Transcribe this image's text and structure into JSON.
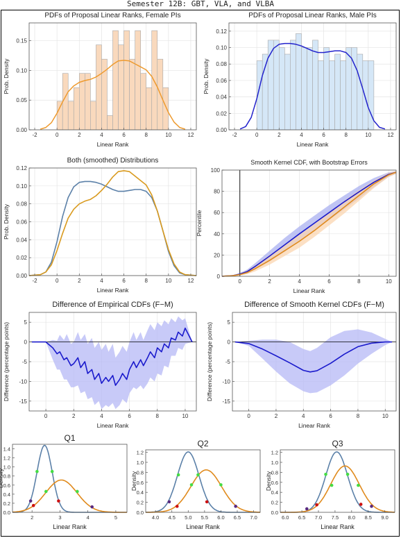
{
  "page": {
    "title": "Semester 12B: GBT, VLA, and VLBA"
  },
  "chart_data": [
    {
      "id": "female-pdf",
      "type": "bar",
      "title": "PDFs of Proposal Linear Ranks, Female PIs",
      "xlabel": "Linear Rank",
      "ylabel": "Prob. Density",
      "xlim": [
        -2.5,
        12.5
      ],
      "ylim": [
        0,
        0.18
      ],
      "xticks": [
        -2,
        0,
        2,
        4,
        6,
        8,
        10,
        12
      ],
      "yticks": [
        0.0,
        0.05,
        0.1,
        0.15
      ],
      "bin_width": 0.5,
      "bin_starts": [
        0,
        0.5,
        1,
        1.5,
        2,
        2.5,
        3,
        3.5,
        4,
        4.5,
        5,
        5.5,
        6,
        6.5,
        7,
        7.5,
        8,
        8.5,
        9,
        9.5
      ],
      "bin_heights": [
        0.048,
        0.095,
        0.048,
        0.071,
        0.095,
        0.095,
        0.048,
        0.143,
        0.119,
        0.024,
        0.167,
        0.143,
        0.167,
        0.119,
        0.167,
        0.095,
        0.071,
        0.167,
        0.119,
        0.071
      ],
      "curve_color": "#ee9a2e",
      "bar_fill": "#f9d9bd",
      "curve": {
        "x": [
          -1.5,
          -1,
          -0.5,
          0,
          0.5,
          1,
          1.5,
          2,
          2.5,
          3,
          3.5,
          4,
          4.5,
          5,
          5.5,
          6,
          6.5,
          7,
          7.5,
          8,
          8.5,
          9,
          9.5,
          10,
          10.5,
          11,
          11.5
        ],
        "y": [
          0.001,
          0.004,
          0.012,
          0.028,
          0.047,
          0.064,
          0.074,
          0.08,
          0.083,
          0.085,
          0.089,
          0.095,
          0.102,
          0.11,
          0.116,
          0.117,
          0.116,
          0.111,
          0.106,
          0.101,
          0.09,
          0.072,
          0.05,
          0.029,
          0.013,
          0.004,
          0.001
        ]
      }
    },
    {
      "id": "male-pdf",
      "type": "bar",
      "title": "PDFs of Proposal Linear Ranks, Male PIs",
      "xlabel": "Linear Rank",
      "ylabel": "Prob. Density",
      "xlim": [
        -2.5,
        12.5
      ],
      "ylim": [
        0,
        0.13
      ],
      "xticks": [
        -2,
        0,
        2,
        4,
        6,
        8,
        10,
        12
      ],
      "yticks": [
        0.0,
        0.02,
        0.04,
        0.06,
        0.08,
        0.1,
        0.12
      ],
      "bin_width": 0.5,
      "bin_starts": [
        0,
        0.5,
        1,
        1.5,
        2,
        2.5,
        3,
        3.5,
        4,
        4.5,
        5,
        5.5,
        6,
        6.5,
        7,
        7.5,
        8,
        8.5,
        9,
        9.5,
        10
      ],
      "bin_heights": [
        0.084,
        0.092,
        0.109,
        0.109,
        0.1,
        0.092,
        0.109,
        0.117,
        0.1,
        0.1,
        0.109,
        0.084,
        0.1,
        0.084,
        0.092,
        0.084,
        0.1,
        0.1,
        0.092,
        0.084,
        0.084
      ],
      "curve_color": "#2222cc",
      "bar_fill": "#d5e7f7",
      "curve": {
        "x": [
          -1.5,
          -1,
          -0.5,
          0,
          0.5,
          1,
          1.5,
          2,
          2.5,
          3,
          3.5,
          4,
          4.5,
          5,
          5.5,
          6,
          6.5,
          7,
          7.5,
          8,
          8.5,
          9,
          9.5,
          10,
          10.5,
          11,
          11.5
        ],
        "y": [
          0.001,
          0.004,
          0.015,
          0.038,
          0.066,
          0.087,
          0.099,
          0.104,
          0.105,
          0.105,
          0.104,
          0.102,
          0.099,
          0.096,
          0.094,
          0.094,
          0.095,
          0.096,
          0.096,
          0.094,
          0.087,
          0.072,
          0.05,
          0.027,
          0.011,
          0.003,
          0.001
        ]
      }
    },
    {
      "id": "both-smoothed",
      "type": "line",
      "title": "Both (smoothed) Distributions",
      "xlabel": "Linear Rank",
      "ylabel": "Prob. Density",
      "xlim": [
        -2.5,
        12.5
      ],
      "ylim": [
        0,
        0.12
      ],
      "xticks": [
        -2,
        0,
        2,
        4,
        6,
        8,
        10,
        12
      ],
      "yticks": [
        0.0,
        0.02,
        0.04,
        0.06,
        0.08,
        0.1,
        0.12
      ],
      "series": [
        {
          "color": "#5b80a8",
          "x": [
            -2.5,
            -1.5,
            -1,
            -0.5,
            0,
            0.5,
            1,
            1.5,
            2,
            2.5,
            3,
            3.5,
            4,
            4.5,
            5,
            5.5,
            6,
            6.5,
            7,
            7.5,
            8,
            8.5,
            9,
            9.5,
            10,
            10.5,
            11,
            11.5,
            12.5
          ],
          "y": [
            0,
            0.001,
            0.004,
            0.015,
            0.038,
            0.066,
            0.087,
            0.099,
            0.104,
            0.105,
            0.105,
            0.104,
            0.102,
            0.099,
            0.096,
            0.094,
            0.094,
            0.095,
            0.096,
            0.096,
            0.094,
            0.087,
            0.072,
            0.05,
            0.027,
            0.011,
            0.003,
            0.001,
            0
          ]
        },
        {
          "color": "#d99a1e",
          "x": [
            -2.5,
            -1.5,
            -1,
            -0.5,
            0,
            0.5,
            1,
            1.5,
            2,
            2.5,
            3,
            3.5,
            4,
            4.5,
            5,
            5.5,
            6,
            6.5,
            7,
            7.5,
            8,
            8.5,
            9,
            9.5,
            10,
            10.5,
            11,
            11.5,
            12.5
          ],
          "y": [
            0,
            0.001,
            0.004,
            0.012,
            0.028,
            0.047,
            0.064,
            0.074,
            0.08,
            0.083,
            0.085,
            0.089,
            0.095,
            0.102,
            0.11,
            0.116,
            0.117,
            0.116,
            0.111,
            0.106,
            0.101,
            0.09,
            0.072,
            0.05,
            0.029,
            0.013,
            0.004,
            0.001,
            0
          ]
        }
      ]
    },
    {
      "id": "cdf-bootstrap",
      "type": "line",
      "title": "Smooth Kernel CDF, with Bootstrap Errors",
      "xlabel": "Linear Rank",
      "ylabel": "Percentile",
      "xlim": [
        -1.2,
        10.5
      ],
      "ylim": [
        0,
        100
      ],
      "xticks": [
        0,
        2,
        4,
        6,
        8,
        10
      ],
      "yticks": [
        0,
        20,
        40,
        60,
        80,
        100
      ],
      "vline_x": 0,
      "series": [
        {
          "color": "#1a1acc",
          "band_color": "#aab0f0",
          "x": [
            -1.2,
            -1,
            -0.5,
            0,
            0.5,
            1,
            2,
            3,
            4,
            5,
            6,
            7,
            8,
            9,
            10,
            10.5
          ],
          "y": [
            0,
            0.2,
            0.6,
            2,
            4.5,
            9,
            19,
            29.5,
            40,
            50,
            60,
            70,
            79.5,
            88.5,
            96,
            98
          ],
          "lo": [
            0,
            0.1,
            0.3,
            1,
            2.5,
            6,
            14,
            23,
            33,
            43,
            53,
            63,
            73,
            84,
            93.5,
            96.5
          ],
          "hi": [
            0,
            0.3,
            1,
            3,
            6.5,
            12,
            24,
            36,
            47,
            57,
            67,
            76,
            85,
            92.5,
            98,
            99
          ]
        },
        {
          "color": "#e08a1c",
          "band_color": "#fbd6b0",
          "x": [
            -1.2,
            -1,
            -0.5,
            0,
            0.5,
            1,
            2,
            3,
            4,
            5,
            6,
            7,
            8,
            9,
            10,
            10.5
          ],
          "y": [
            0,
            0.2,
            0.5,
            1.6,
            3.6,
            7,
            15,
            24,
            33,
            43,
            54,
            65,
            76,
            87,
            95.5,
            98
          ],
          "lo": [
            0,
            0.1,
            0.3,
            0.8,
            2,
            4.5,
            11,
            19,
            27,
            37,
            48,
            59,
            71,
            83,
            93.5,
            96.5
          ],
          "hi": [
            0,
            0.3,
            0.9,
            2.6,
            5.5,
            10,
            20,
            29,
            39,
            49,
            60,
            71,
            81,
            90,
            97.5,
            99
          ]
        }
      ]
    },
    {
      "id": "empirical-diff",
      "type": "line",
      "title": "Difference of Empirical CDFs (F−M)",
      "xlabel": "Linear Rank",
      "ylabel": "Difference (percentage points)",
      "xlim": [
        -1.2,
        10.8
      ],
      "ylim": [
        -17.5,
        7.5
      ],
      "xticks": [
        0,
        2,
        4,
        6,
        8,
        10
      ],
      "yticks": [
        -15,
        -10,
        -5,
        0,
        5
      ],
      "series": [
        {
          "color": "#1a1acc",
          "band_color": "#b5b8f5",
          "x": [
            -1,
            0,
            0.5,
            0.8,
            1,
            1.3,
            1.5,
            1.8,
            2,
            2.3,
            2.5,
            2.8,
            3,
            3.3,
            3.5,
            3.8,
            4,
            4.3,
            4.5,
            4.8,
            5,
            5.3,
            5.5,
            5.8,
            6,
            6.3,
            6.5,
            6.8,
            7,
            7.3,
            7.5,
            7.8,
            8,
            8.3,
            8.5,
            8.8,
            9,
            9.3,
            9.5,
            9.8,
            10,
            10.5
          ],
          "y": [
            0,
            0,
            -1.5,
            -3,
            -2.5,
            -4.5,
            -4,
            -6,
            -5.5,
            -4,
            -6.5,
            -5,
            -8,
            -7,
            -9.5,
            -8,
            -10.5,
            -9,
            -10,
            -8.5,
            -11,
            -9.5,
            -8,
            -9.5,
            -7,
            -5,
            -6.5,
            -4.5,
            -6,
            -4,
            -2.5,
            -4,
            -1.5,
            -2.5,
            -0.5,
            -1.5,
            1,
            0.5,
            2.5,
            1.5,
            3.5,
            0
          ],
          "lo": [
            0,
            0,
            -4.5,
            -7,
            -7,
            -9.5,
            -9.5,
            -11.5,
            -11.5,
            -11,
            -13,
            -12.5,
            -14.5,
            -14,
            -16,
            -15,
            -17,
            -16,
            -16.5,
            -15.5,
            -17,
            -16,
            -14.5,
            -15.5,
            -13,
            -11.5,
            -12,
            -11,
            -12,
            -10.5,
            -9,
            -10,
            -8,
            -8.5,
            -6,
            -6.5,
            -3.5,
            -3.5,
            -1.5,
            -2,
            -0.5,
            0
          ],
          "hi": [
            0,
            0,
            0.5,
            0.3,
            1.8,
            0.5,
            2,
            -0.5,
            0,
            2.5,
            0.5,
            2,
            -0.5,
            1,
            -1.5,
            0,
            -2,
            -0.5,
            -2.5,
            -0.5,
            -4,
            -2.5,
            -1,
            -2.5,
            0,
            2.5,
            0.5,
            2.5,
            0.5,
            3,
            4.5,
            3,
            5,
            4,
            5.5,
            4.5,
            6,
            5,
            6.5,
            5.5,
            6,
            0
          ]
        }
      ]
    },
    {
      "id": "smooth-diff",
      "type": "line",
      "title": "Difference of Smooth Kernel CDFs (F−M)",
      "xlabel": "Linear Rank",
      "ylabel": "Difference (percentage points)",
      "xlim": [
        -1.2,
        10.8
      ],
      "ylim": [
        -17.5,
        7.5
      ],
      "xticks": [
        0,
        2,
        4,
        6,
        8,
        10
      ],
      "yticks": [
        -15,
        -10,
        -5,
        0,
        5
      ],
      "series": [
        {
          "color": "#1a1acc",
          "band_color": "#b5b8f5",
          "x": [
            -1,
            0,
            1,
            2,
            3,
            4,
            4.5,
            5,
            6,
            7,
            8,
            9,
            10,
            10.5
          ],
          "y": [
            0,
            -0.4,
            -1.8,
            -3.5,
            -5.3,
            -7.2,
            -7.6,
            -7.3,
            -5.4,
            -3.1,
            -1.2,
            -0.3,
            0,
            0
          ],
          "lo": [
            0,
            -1,
            -4.2,
            -7.5,
            -10.5,
            -12.5,
            -13,
            -12.8,
            -11,
            -8.5,
            -5.5,
            -3,
            -0.8,
            0
          ],
          "hi": [
            0,
            0.3,
            0.6,
            0.6,
            0,
            -1.8,
            -2.3,
            -1.5,
            1.2,
            2.8,
            3.2,
            2.4,
            0.8,
            0
          ]
        }
      ]
    },
    {
      "id": "q1",
      "type": "line",
      "title": "Q1",
      "xlabel": "Linear Rank",
      "ylabel": "Density",
      "xlim": [
        1.3,
        5.4
      ],
      "ylim": [
        0,
        1.5
      ],
      "xticks": [
        2,
        3,
        4,
        5
      ],
      "yticks": [
        0.0,
        0.2,
        0.4,
        0.6,
        0.8,
        1.0,
        1.2,
        1.4
      ],
      "series": [
        {
          "color": "#5b80a8",
          "mean": 2.45,
          "sd": 0.27
        },
        {
          "color": "#e08a1c",
          "mean": 3.05,
          "sd": 0.56
        }
      ],
      "markers": [
        {
          "x": 1.95,
          "y": 0.25,
          "color": "#5a2a80"
        },
        {
          "x": 2.18,
          "y": 0.9,
          "color": "#44dd44"
        },
        {
          "x": 2.72,
          "y": 0.9,
          "color": "#44dd44"
        },
        {
          "x": 2.95,
          "y": 0.25,
          "color": "#cc1111"
        },
        {
          "x": 2.05,
          "y": 0.15,
          "color": "#cc1111"
        },
        {
          "x": 2.5,
          "y": 0.46,
          "color": "#44dd44"
        },
        {
          "x": 3.62,
          "y": 0.46,
          "color": "#44dd44"
        },
        {
          "x": 4.15,
          "y": 0.12,
          "color": "#5a2a80"
        }
      ]
    },
    {
      "id": "q2",
      "type": "line",
      "title": "Q2",
      "xlabel": "Linear Rank",
      "ylabel": "Density",
      "xlim": [
        3.7,
        7.2
      ],
      "ylim": [
        0,
        1.25
      ],
      "xticks": [
        4.0,
        4.5,
        5.0,
        5.5,
        6.0,
        6.5,
        7.0
      ],
      "yticks": [
        0.0,
        0.2,
        0.4,
        0.6,
        0.8,
        1.0,
        1.2
      ],
      "series": [
        {
          "color": "#5b80a8",
          "mean": 5.0,
          "sd": 0.33
        },
        {
          "color": "#e08a1c",
          "mean": 5.55,
          "sd": 0.47
        }
      ],
      "markers": [
        {
          "x": 4.42,
          "y": 0.21,
          "color": "#5a2a80"
        },
        {
          "x": 4.7,
          "y": 0.75,
          "color": "#44dd44"
        },
        {
          "x": 5.3,
          "y": 0.75,
          "color": "#44dd44"
        },
        {
          "x": 5.57,
          "y": 0.21,
          "color": "#cc1111"
        },
        {
          "x": 4.66,
          "y": 0.12,
          "color": "#cc1111"
        },
        {
          "x": 5.1,
          "y": 0.55,
          "color": "#44dd44"
        },
        {
          "x": 6.0,
          "y": 0.55,
          "color": "#44dd44"
        },
        {
          "x": 6.45,
          "y": 0.12,
          "color": "#5a2a80"
        }
      ]
    },
    {
      "id": "q3",
      "type": "line",
      "title": "Q3",
      "xlabel": "Linear Rank",
      "ylabel": "Density",
      "xlim": [
        5.85,
        9.3
      ],
      "ylim": [
        0,
        1.25
      ],
      "xticks": [
        6.0,
        6.5,
        7.0,
        7.5,
        8.0,
        8.5,
        9.0
      ],
      "yticks": [
        0.0,
        0.2,
        0.4,
        0.6,
        0.8,
        1.0,
        1.2
      ],
      "series": [
        {
          "color": "#5b80a8",
          "mean": 7.55,
          "sd": 0.33
        },
        {
          "color": "#e08a1c",
          "mean": 7.8,
          "sd": 0.43
        }
      ],
      "markers": [
        {
          "x": 6.65,
          "y": 0.07,
          "color": "#5a2a80"
        },
        {
          "x": 7.22,
          "y": 0.76,
          "color": "#44dd44"
        },
        {
          "x": 7.88,
          "y": 0.76,
          "color": "#44dd44"
        },
        {
          "x": 8.28,
          "y": 0.16,
          "color": "#cc1111"
        },
        {
          "x": 6.95,
          "y": 0.15,
          "color": "#cc1111"
        },
        {
          "x": 7.4,
          "y": 0.54,
          "color": "#44dd44"
        },
        {
          "x": 8.2,
          "y": 0.54,
          "color": "#44dd44"
        },
        {
          "x": 8.6,
          "y": 0.12,
          "color": "#5a2a80"
        }
      ]
    }
  ]
}
